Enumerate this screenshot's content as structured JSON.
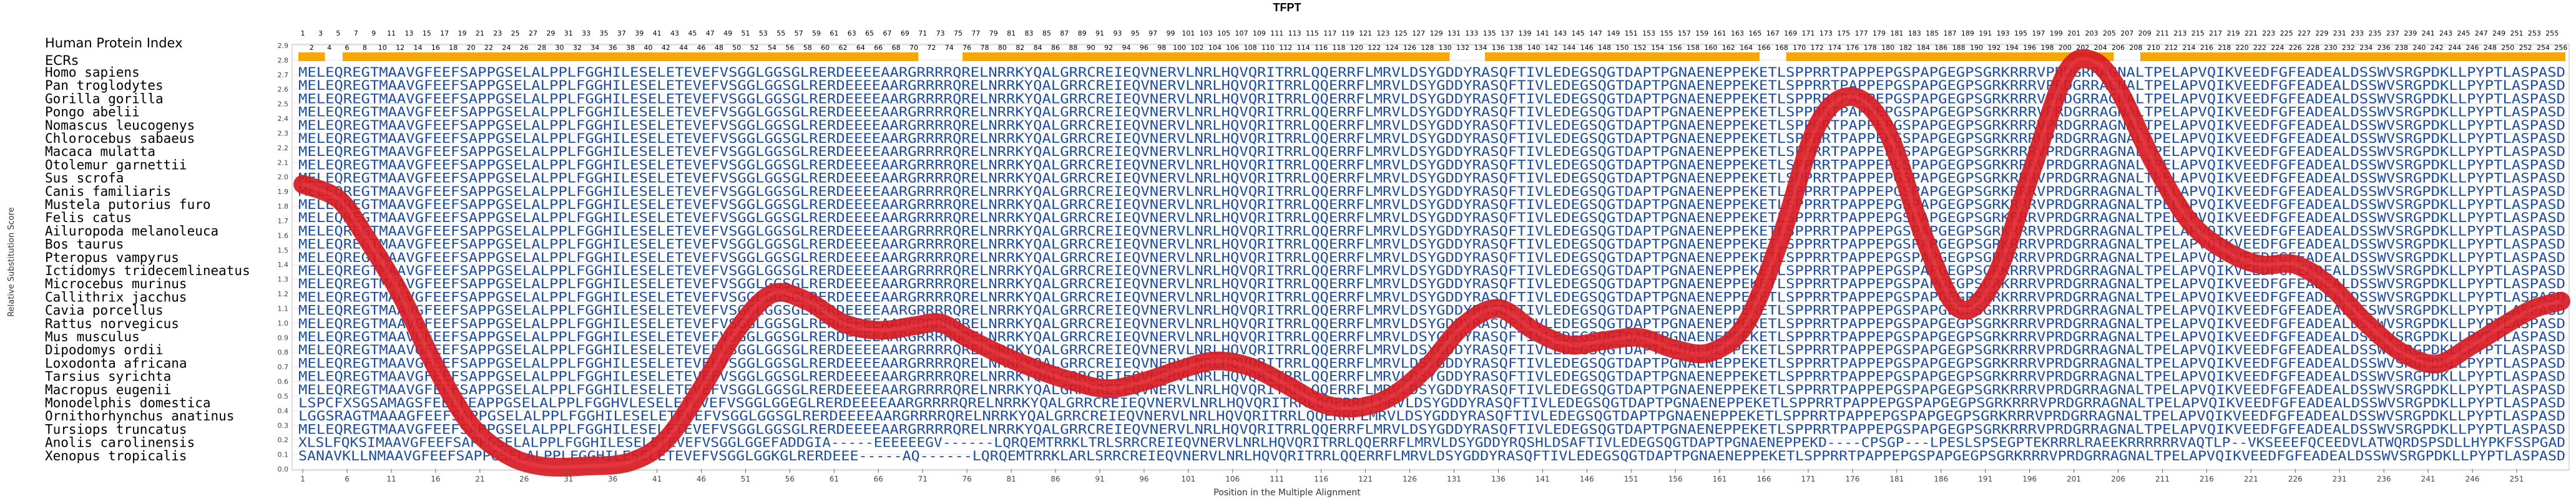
{
  "chart_data": {
    "type": "line",
    "title": "TFPT",
    "xlabel": "Position in the Multiple Alignment",
    "ylabel": "Relative Substitution Score",
    "xlim": [
      1,
      256
    ],
    "ylim": [
      0,
      2.9
    ],
    "yticks": [
      "0.0",
      "0.1",
      "0.2",
      "0.3",
      "0.4",
      "0.5",
      "0.6",
      "0.7",
      "0.8",
      "0.9",
      "1.0",
      "1.1",
      "1.2",
      "1.3",
      "1.4",
      "1.5",
      "1.6",
      "1.7",
      "1.8",
      "1.9",
      "2.0",
      "2.1",
      "2.2",
      "2.3",
      "2.4",
      "2.5",
      "2.6",
      "2.7",
      "2.8",
      "2.9"
    ],
    "xticks_bottom": [
      1,
      6,
      11,
      16,
      21,
      26,
      31,
      36,
      41,
      46,
      51,
      56,
      61,
      66,
      71,
      76,
      81,
      86,
      91,
      96,
      101,
      106,
      111,
      116,
      121,
      126,
      131,
      136,
      141,
      146,
      151,
      156,
      161,
      166,
      171,
      176,
      181,
      186,
      191,
      196,
      201,
      206,
      211,
      216,
      221,
      226,
      231,
      236,
      241,
      246,
      251
    ],
    "header_label": "Human Protein Index",
    "ecr_label": "ECRs",
    "species": [
      "Homo sapiens",
      "Pan troglodytes",
      "Gorilla gorilla",
      "Pongo abelii",
      "Nomascus leucogenys",
      "Chlorocebus sabaeus",
      "Macaca mulatta",
      "Otolemur garnettii",
      "Sus scrofa",
      "Canis familiaris",
      "Mustela putorius furo",
      "Felis catus",
      "Ailuropoda melanoleuca",
      "Bos taurus",
      "Pteropus vampyrus",
      "Ictidomys tridecemlineatus",
      "Microcebus murinus",
      "Callithrix jacchus",
      "Cavia porcellus",
      "Rattus norvegicus",
      "Mus musculus",
      "Dipodomys ordii",
      "Loxodonta africana",
      "Tarsius syrichta",
      "Macropus eugenii",
      "Monodelphis domestica",
      "Ornithorhynchus anatinus",
      "Tursiops truncatus",
      "Anolis carolinensis",
      "Xenopus tropicalis"
    ],
    "sequences": [
      "MELEQREGTMAAVGFEEFSAPPGSELALPPLFGGHILESELETEVEFVSGGLGGSGLRERDEEEEAARGRRRRQRELNRRKYQALGRRCREIEQVNERVLNRLHQVQRITRRLQQERRFLMRVLDSYGDDYRASQFTIVLEDEGSQGTDAPTPGNAENEPPEKETLSPPRRTPAPPEPGSPAPGEGPSGRKRRRVPRDGRRAGNALTPELAPVQIKVEEDFGFEADEALDSSWVSRGPDKLLPYPTLASPASD",
      "MELEQREGTMAAVGFEEFSAPPGSELALPPLFGGHILESELETEVEFVSGGLGGSGLRERDEEEEAARGRRRRQRELNRRKYQALGRRCREIEQVNERVLNRLHQVQRITRRLQQERRFLMRVLDSYGDDYRASQFTIVLEDEGSQGTDAPTPGNAENEPPEKETLSPPRRTPAPPEPGSPAPGEGPSGRKRRRVPRDGRRAGNALTPELAPVQIKVEEDFGFEADEALDSSWVSRGPDKLLPYPTLASPASD",
      "MELEQREGTMAAVGFEEFSAPPGSELALPPLFGGHILESELETEVEFVSGGLGGSGLRERDEEEEAARGRRRRQRELNRRKYQALGRRCREIEQVNERVLNRLHQVQRITRRLQQERRFLMRVLDSYGDDYRASQFTIVLEDEGSQGTDAPTPGNAENEPPEKETLSPPRRTPAPPEPGSPAPGEGPSGRKRRRVPRDGRRAGNALTPELAPVQIKVEEDFGFEADEALDSSWVSRGPDKLLPYPTLASPASD",
      "MELEQREGTMAAVGFEEFSAPPGSELALPPLFGGHILESELETEVEFVSGGLGGSGLRERDEEEEAARGRRRRQRELNRRKYQALGRRCREIEQVNERVLNRLHQVQRITRRLQQERRFLMRVLDSYGDDYRASQFTIVLEDEGSQGTDAPTPGNAENEPPEKETLSPPRRTPAPPEPGSPAPGEGPSGRKRRRVPRDGRRAGNALTPELAPVQIKVEEDFGFEADEALDSSWVSRGPDKLLPYPTLASPASD",
      "MELEQREGTMAAVGFEEFSAPPGSELALPPLFGGHILESELETEVEFVSGGLGGSGLRERDEEEEAARGRRRRQRELNRRKYQALGRRCREIEQVNERVLNRLHQVQRITRRLQQERRFLMRVLDSYGDDYRASQFTIVLEDEGSQGTDAPTPGNAENEPPEKETLSPPRRTPAPPEPGSPAPGEGPSGRKRRRVPRDGRRAGNALTPELAPVQIKVEEDFGFEADEALDSSWVSRGPDKLLPYPTLASPASD",
      "MELEQREGTMAAVGFEEFSAPPGSELALPPLFGGHILESELETEVEFVSGGLGGSGLRERDEEEEAARGRRRRQRELNRRKYQALGRRCREIEQVNERVLNRLHQVQRITRRLQQERRFLMRVLDSYGDDYRASQFTIVLEDEGSQGTDAPTPGNAENEPPEKETLSPPRRTPAPPEPGSPAPGEGPSGRKRRRVPRDGRRAGNALTPELAPVQIKVEEDFGFEADEALDSSWVSRGPDKLLPYPTLASPASD",
      "MELEQREGTMAAVGFEEFSAPPGSELALPPLFGGHILESELETEVEFVSGGLGGSGLRERDEEEEAARGRRRRQRELNRRKYQALGRRCREIEQVNERVLNRLHQVQRITRRLQQERRFLMRVLDSYGDDYRASQFTIVLEDEGSQGTDAPTPGNAENEPPEKETLSPPRRTPAPPEPGSPAPGEGPSGRKRRRVPRDGRRAGNALTPELAPVQIKVEEDFGFEADEALDSSWVSRGPDKLLPYPTLASPASD",
      "MELEQREGTMAAVGFEEFSAPPGSELALPPLFGGHILESELETEVEFVSGGLGGSGLRERDEEEEAARGRRRRQRELNRRKYQALGRRCREIEQVNERVLNRLHQVQRITRRLQQERRFLMRVLDSYGDDYRASQFTIVLEDEGSQGTDAPTPGNAENEPPEKETLSPPRRTPAPPEPGSPAPGEGPSGRKRRRVPRDGRRAGNALTPELAPVQIKVEEDFGFEADEALDSSWVSRGPDKLLPYPTLASPASD",
      "MELEQREGTMAAVGFEEFSAPPGSELALPPLFGGHILESELETEVEFVSGGLGGSGLRERDEEEEAARGRRRRQRELNRRKYQALGRRCREIEQVNERVLNRLHQVQRITRRLQQERRFLMRVLDSYGDDYRASQFTIVLEDEGSQGTDAPTPGNAENEPPEKETLSPPRRTPAPPEPGSPAPGEGPSGRKRRRVPRDGRRAGNALTPELAPVQIKVEEDFGFEADEALDSSWVSRGPDKLLPYPTLASPASD",
      "MELEQREGTMAAVGFEEFSAPPGSELALPPLFGGHILESELETEVEFVSGGLGGSGLRERDEEEEAARGRRRRQRELNRRKYQALGRRCREIEQVNERVLNRLHQVQRITRRLQQERRFLMRVLDSYGDDYRASQFTIVLEDEGSQGTDAPTPGNAENEPPEKETLSPPRRTPAPPEPGSPAPGEGPSGRKRRRVPRDGRRAGNALTPELAPVQIKVEEDFGFEADEALDSSWVSRGPDKLLPYPTLASPASD",
      "MELEQREGTMAAVGFEEFSAPPGSELALPPLFGGHILESELETEVEFVSGGLGGSGLRERDEEEEAARGRRRRQRELNRRKYQALGRRCREIEQVNERVLNRLHQVQRITRRLQQERRFLMRVLDSYGDDYRASQFTIVLEDEGSQGTDAPTPGNAENEPPEKETLSPPRRTPAPPEPGSPAPGEGPSGRKRRRVPRDGRRAGNALTPELAPVQIKVEEDFGFEADEALDSSWVSRGPDKLLPYPTLASPASD",
      "MELEQREGTMAAVGFEEFSAPPGSELALPPLFGGHILESELETEVEFVSGGLGGSGLRERDEEEEAARGRRRRQRELNRRKYQALGRRCREIEQVNERVLNRLHQVQRITRRLQQERRFLMRVLDSYGDDYRASQFTIVLEDEGSQGTDAPTPGNAENEPPEKETLSPPRRTPAPPEPGSPAPGEGPSGRKRRRVPRDGRRAGNALTPELAPVQIKVEEDFGFEADEALDSSWVSRGPDKLLPYPTLASPASD",
      "MELEQREGTMAAVGFEEFSAPPGSELALPPLFGGHILESELETEVEFVSGGLGGSGLRERDEEEEAARGRRRRQRELNRRKYQALGRRCREIEQVNERVLNRLHQVQRITRRLQQERRFLMRVLDSYGDDYRASQFTIVLEDEGSQGTDAPTPGNAENEPPEKETLSPPRRTPAPPEPGSPAPGEGPSGRKRRRVPRDGRRAGNALTPELAPVQIKVEEDFGFEADEALDSSWVSRGPDKLLPYPTLASPASD",
      "MELEQREGTMAAVGFEEFSAPPGSELALPPLFGGHILESELETEVEFVSGGLGGSGLRERDEEEEAARGRRRRQRELNRRKYQALGRRCREIEQVNERVLNRLHQVQRITRRLQQERRFLMRVLDSYGDDYRASQFTIVLEDEGSQGTDAPTPGNAENEPPEKETLSPPRRTPAPPEPGSPAPGEGPSGRKRRRVPRDGRRAGNALTPELAPVQIKVEEDFGFEADEALDSSWVSRGPDKLLPYPTLASPASD",
      "MELEQREGTMAAVGFEEFSAPPGSELALPPLFGGHILESELETEVEFVSGGLGGSGLRERDEEEEAARGRRRRQRELNRRKYQALGRRCREIEQVNERVLNRLHQVQRITRRLQQERRFLMRVLDSYGDDYRASQFTIVLEDEGSQGTDAPTPGNAENEPPEKETLSPPRRTPAPPEPGSPAPGEGPSGRKRRRVPRDGRRAGNALTPELAPVQIKVEEDFGFEADEALDSSWVSRGPDKLLPYPTLASPASD",
      "MELEQREGTMAAVGFEEFSAPPGSELALPPLFGGHILESELETEVEFVSGGLGGSGLRERDEEEEAARGRRRRQRELNRRKYQALGRRCREIEQVNERVLNRLHQVQRITRRLQQERRFLMRVLDSYGDDYRASQFTIVLEDEGSQGTDAPTPGNAENEPPEKETLSPPRRTPAPPEPGSPAPGEGPSGRKRRRVPRDGRRAGNALTPELAPVQIKVEEDFGFEADEALDSSWVSRGPDKLLPYPTLASPASD",
      "MELEQREGTMAAVGFEEFSAPPGSELALPPLFGGHILESELETEVEFVSGGLGGSGLRERDEEEEAARGRRRRQRELNRRKYQALGRRCREIEQVNERVLNRLHQVQRITRRLQQERRFLMRVLDSYGDDYRASQFTIVLEDEGSQGTDAPTPGNAENEPPEKETLSPPRRTPAPPEPGSPAPGEGPSGRKRRRVPRDGRRAGNALTPELAPVQIKVEEDFGFEADEALDSSWVSRGPDKLLPYPTLASPASD",
      "MELEQREGTMAAVGFEEFSAPPGSELALPPLFGGHILESELETEVEFVSGGLGGSGLRERDEEEEAARGRRRRQRELNRRKYQALGRRCREIEQVNERVLNRLHQVQRITRRLQQERRFLMRVLDSYGDDYRASQFTIVLEDEGSQGTDAPTPGNAENEPPEKETLSPPRRTPAPPEPGSPAPGEGPSGRKRRRVPRDGRRAGNALTPELAPVQIKVEEDFGFEADEALDSSWVSRGPDKLLPYPTLASPASD",
      "MELEQREGTMAAVGFEEFSAPPGSELALPPLFGGHILESELETEVEFVSGGLGGSGLRERDEEEEAARGRRRRQRELNRRKYQALGRRCREIEQVNERVLNRLHQVQRITRRLQQERRFLMRVLDSYGDDYRASQFTIVLEDEGSQGTDAPTPGNAENEPPEKETLSPPRRTPAPPEPGSPAPGEGPSGRKRRRVPRDGRRAGNALTPELAPVQIKVEEDFGFEADEALDSSWVSRGPDKLLPYPTLASPASD",
      "MELEQREGTMAAVGFEEFSAPPGSELALPPLFGGHILESELETEVEFVSGGLGGSGLRERDEEEEAARGRRRRQRELNRRKYQALGRRCREIEQVNERVLNRLHQVQRITRRLQQERRFLMRVLDSYGDDYRASQFTIVLEDEGSQGTDAPTPGNAENEPPEKETLSPPRRTPAPPEPGSPAPGEGPSGRKRRRVPRDGRRAGNALTPELAPVQIKVEEDFGFEADEALDSSWVSRGPDKLLPYPTLASPASD",
      "MELEQREGTMAAVGFEEFSAPPGSELALPPLFGGHILESELETEVEFVSGGLGGSGLRERDEEEEAARGRRRRQRELNRRKYQALGRRCREIEQVNERVLNRLHQVQRITRRLQQERRFLMRVLDSYGDDYRASQFTIVLEDEGSQGTDAPTPGNAENEPPEKETLSPPRRTPAPPEPGSPAPGEGPSGRKRRRVPRDGRRAGNALTPELAPVQIKVEEDFGFEADEALDSSWVSRGPDKLLPYPTLASPASD",
      "MELEQREGTMAAVGFEEFSAPPGSELALPPLFGGHILESELETEVEFVSGGLGGSGLRERDEEEEAARGRRRRQRELNRRKYQALGRRCREIEQVNERVLNRLHQVQRITRRLQQERRFLMRVLDSYGDDYRASQFTIVLEDEGSQGTDAPTPGNAENEPPEKETLSPPRRTPAPPEPGSPAPGEGPSGRKRRRVPRDGRRAGNALTPELAPVQIKVEEDFGFEADEALDSSWVSRGPDKLLPYPTLASPASD",
      "MELEQREGTMAAVGFEEFSAPPGSELALPPLFGGHILESELETEVEFVSGGLGGSGLRERDEEEEAARGRRRRQRELNRRKYQALGRRCREIEQVNERVLNRLHQVQRITRRLQQERRFLMRVLDSYGDDYRASQFTIVLEDEGSQGTDAPTPGNAENEPPEKETLSPPRRTPAPPEPGSPAPGEGPSGRKRRRVPRDGRRAGNALTPELAPVQIKVEEDFGFEADEALDSSWVSRGPDKLLPYPTLASPASD",
      "MELEQREGTMAAVGFEEFSAPPGSELALPPLFGGHILESELETEVEFVSGGLGGSGLRERDEEEEAARGRRRRQRELNRRKYQALGRRCREIEQVNERVLNRLHQVQRITRRLQQERRFLMRVLDSYGDDYRASQFTIVLEDEGSQGTDAPTPGNAENEPPEKETLSPPRRTPAPPEPGSPAPGEGPSGRKRRRVPRDGRRAGNALTPELAPVQIKVEEDFGFEADEALDSSWVSRGPDKLLPYPTLASPASD",
      "MELEQREGTMAAVGFEEFSAPPGSELALPPLFGGHILESELETEVEFVSGGLGGSGLRERDEEEEAARGRRRRQRELNRRKYQALGRRCREIEQVNERVLNRLHQVQRITRRLQQERRFLMRVLDSYGDDYRASQFTIVLEDEGSQGTDAPTPGNAENEPPEKETLSPPRRTPAPPEPGSPAPGEGPSGRKRRRVPRDGRRAGNALTPELAPVQIKVEEDFGFEADEALDSSWVSRGPDKLLPYPTLASPASD",
      "LSPCFXSGSAMAGSFEELFEAPPGSELALPPLFGGHVLESELETEVEFVSGGLGGEGLRERDEEEEAARGRRRRQRELNRRKYQALGRRCREIEQVNERVLNRLHQVQRITRRLQQERRFLMRVLDSYGDDYRASQFTIVLEDEGSQGTDAPTPGNAENEPPEKETLSPPRRTPAPPEPGSPAPGEGPSGRKRRRVPRDGRRAGNALTPELAPVQIKVEEDFGFEADEALDSSWVSRGPDKLLPYPTLASPASD",
      "LGGSRAGTMAAAGFEEFSAPPGSELALPPLFGGHILESELETEVEFVSGGLGGSGLRERDEEEEAARGRRRRQRELNRRKYQALGRRCREIEQVNERVLNRLHQVQRITRRLQQERRFLMRVLDSYGDDYRASQFTIVLEDEGSQGTDAPTPGNAENEPPEKETLSPPRRTPAPPEPGSPAPGEGPSGRKRRRVPRDGRRAGNALTPELAPVQIKVEEDFGFEADEALDSSWVSRGPDKLLPYPTLASPASD",
      "MELEQREGTMAAVGFEEFSAPPGSELALPPLFGGHILESELETEVEFVSGGLGGSGLRERDEEEEAARGRRRRQRELNRRKYQALGRRCREIEQVNERVLNRLHQVQRITRRLQQERRFLMRVLDSYGDDYRASQFTIVLEDEGSQGTDAPTPGNAENEPPEKETLSPPRRTPAPPEPGSPAPGEGPSGRKRRRVPRDGRRAGNALTPELAPVQIKVEEDFGFEADEALDSSWVSRGPDKLLPYPTLASPASD",
      "XLSLFQKSIMAAVGFEEFSAPPGSELALPPLFGGHILESELETEVEFVSGGLGGEFADDGIA-----EEEEEEGV------LQRQEMTRRKLTRLSRRCREIEQVNERVLNRLHQVQRITRRLQQERRFLMRVLDSYGDDYRQSHLDSAFTIVLEDEGSQGTDAPTPGNAENEPPEKD----CPSGP---LPESLSPSEGPTEKRRRLRAEEKRRRRRRVAQTLP--VKSEEEFQCEEDVLATWQRDSPSDLLHYPKFSSPGAD",
      "SANAVKLLNMAAVGFEEFSAPPGSELALPPLFGGHILESELETEVEFVSGGLGGKGLRERDEEE-----AQ------LQRQEMTRRKLARLSRRCREIEQVNERVLNRLHQVQRITRRLQQERRFLMRVLDSYGDDYRASQFTIVLEDEGSQGTDAPTPGNAENEPPEKETLSPPRRTPAPPEPGSPAPGEGPSGRKRRRVPRDGRRAGNALTPELAPVQIKVEEDFGFEADEALDSSWVSRGPDKLLPYPTLASPASD"
    ],
    "ecr_regions": [
      [
        1,
        3
      ],
      [
        6,
        70
      ],
      [
        76,
        130
      ],
      [
        135,
        165
      ],
      [
        169,
        205
      ],
      [
        209,
        256
      ]
    ],
    "series": [
      {
        "values": [
          [
            1,
            1.95
          ],
          [
            5,
            1.85
          ],
          [
            8,
            1.6
          ],
          [
            12,
            1.2
          ],
          [
            16,
            0.7
          ],
          [
            20,
            0.3
          ],
          [
            24,
            0.1
          ],
          [
            28,
            0.02
          ],
          [
            33,
            0.02
          ],
          [
            38,
            0.05
          ],
          [
            42,
            0.2
          ],
          [
            46,
            0.55
          ],
          [
            50,
            0.95
          ],
          [
            54,
            1.2
          ],
          [
            58,
            1.15
          ],
          [
            62,
            1.0
          ],
          [
            66,
            0.95
          ],
          [
            70,
            0.98
          ],
          [
            73,
            1.0
          ],
          [
            76,
            0.9
          ],
          [
            80,
            0.78
          ],
          [
            84,
            0.68
          ],
          [
            88,
            0.6
          ],
          [
            92,
            0.55
          ],
          [
            96,
            0.6
          ],
          [
            100,
            0.68
          ],
          [
            104,
            0.74
          ],
          [
            108,
            0.7
          ],
          [
            112,
            0.58
          ],
          [
            116,
            0.45
          ],
          [
            120,
            0.42
          ],
          [
            124,
            0.5
          ],
          [
            128,
            0.7
          ],
          [
            132,
            0.98
          ],
          [
            136,
            1.1
          ],
          [
            140,
            0.95
          ],
          [
            144,
            0.85
          ],
          [
            148,
            0.88
          ],
          [
            152,
            0.9
          ],
          [
            156,
            0.82
          ],
          [
            160,
            0.8
          ],
          [
            164,
            1.0
          ],
          [
            168,
            1.6
          ],
          [
            172,
            2.35
          ],
          [
            176,
            2.55
          ],
          [
            180,
            2.3
          ],
          [
            184,
            1.6
          ],
          [
            188,
            1.1
          ],
          [
            192,
            1.3
          ],
          [
            196,
            2.0
          ],
          [
            200,
            2.7
          ],
          [
            203,
            2.8
          ],
          [
            206,
            2.6
          ],
          [
            210,
            2.1
          ],
          [
            214,
            1.7
          ],
          [
            218,
            1.5
          ],
          [
            222,
            1.4
          ],
          [
            226,
            1.4
          ],
          [
            230,
            1.25
          ],
          [
            234,
            1.0
          ],
          [
            238,
            0.8
          ],
          [
            242,
            0.72
          ],
          [
            246,
            0.85
          ],
          [
            250,
            1.0
          ],
          [
            253,
            1.1
          ],
          [
            256,
            1.15
          ]
        ]
      }
    ]
  },
  "colors": {
    "curve": "#d61a22",
    "residue": "#1f4f9c",
    "ecr": "#f7a800",
    "grid": "#e3e3e3"
  }
}
